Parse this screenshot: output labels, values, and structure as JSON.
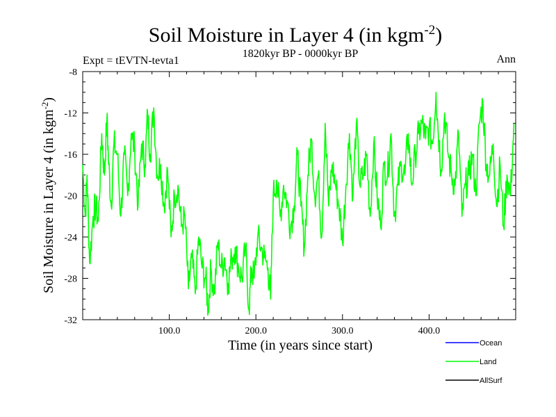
{
  "chart_data": {
    "type": "line",
    "title": "Soil Moisture in Layer 4 (in kgm",
    "title_sup": "-2",
    "title_close": ")",
    "subtitle": "1820kyr BP - 0000kyr BP",
    "expt_label": "Expt = tEVTN-tevta1",
    "season_label": "Ann",
    "xlabel": "Time (in years since start)",
    "ylabel": "Soil Moisture in Layer 4 (in kgm",
    "ylabel_sup": "-2",
    "ylabel_close": ")",
    "xlim": [
      0,
      500
    ],
    "ylim": [
      -32,
      -8
    ],
    "x_ticks": [
      100,
      200,
      300,
      400
    ],
    "x_tick_labels": [
      "100.0",
      "200.0",
      "300.0",
      "400.0"
    ],
    "y_ticks": [
      -8,
      -12,
      -16,
      -20,
      -24,
      -28,
      -32
    ],
    "y_tick_labels": [
      "-8",
      "-12",
      "-16",
      "-20",
      "-24",
      "-28",
      "-32"
    ],
    "legend_position": "bottom-right",
    "series": [
      {
        "name": "Ocean",
        "color": "#0000ff",
        "values": []
      },
      {
        "name": "Land",
        "color": "#00ff00",
        "x": [
          0,
          3,
          5,
          8,
          12,
          15,
          18,
          22,
          25,
          28,
          30,
          33,
          36,
          40,
          44,
          48,
          52,
          56,
          60,
          64,
          68,
          72,
          75,
          78,
          82,
          86,
          90,
          94,
          98,
          102,
          106,
          110,
          114,
          118,
          122,
          126,
          130,
          134,
          138,
          142,
          145,
          148,
          152,
          156,
          160,
          164,
          168,
          172,
          176,
          180,
          184,
          188,
          192,
          195,
          198,
          202,
          206,
          210,
          214,
          217,
          220,
          224,
          228,
          232,
          236,
          240,
          244,
          248,
          252,
          256,
          260,
          264,
          268,
          272,
          276,
          280,
          284,
          288,
          292,
          296,
          300,
          304,
          308,
          312,
          316,
          320,
          324,
          328,
          332,
          336,
          340,
          344,
          348,
          352,
          356,
          360,
          364,
          368,
          372,
          376,
          380,
          384,
          388,
          392,
          396,
          400,
          404,
          408,
          410,
          414,
          418,
          422,
          426,
          430,
          434,
          438,
          442,
          446,
          450,
          454,
          458,
          462,
          466,
          470,
          474,
          478,
          482,
          486,
          490,
          494,
          498
        ],
        "values": [
          -17,
          -22,
          -18,
          -26.5,
          -22,
          -21,
          -22.5,
          -14,
          -18,
          -12.5,
          -17,
          -21,
          -15,
          -16,
          -22,
          -16,
          -20,
          -14,
          -15.5,
          -21,
          -15,
          -17,
          -12,
          -16,
          -11.5,
          -18,
          -17,
          -21,
          -17.5,
          -24,
          -20,
          -19,
          -23,
          -22,
          -29,
          -26,
          -29.5,
          -24,
          -27,
          -28,
          -31,
          -27,
          -29.5,
          -24.5,
          -27,
          -26,
          -28.5,
          -26,
          -25,
          -27,
          -28,
          -25,
          -31,
          -27,
          -28,
          -24,
          -25,
          -26,
          -27,
          -30,
          -20,
          -18.5,
          -22,
          -19,
          -20.5,
          -23,
          -21,
          -16,
          -21,
          -25,
          -18,
          -14.5,
          -20,
          -18,
          -24,
          -13,
          -21,
          -17,
          -19,
          -21,
          -24.5,
          -19,
          -14,
          -20,
          -13,
          -19,
          -18,
          -16,
          -22,
          -15,
          -20,
          -23,
          -17,
          -18,
          -14,
          -22,
          -19,
          -17,
          -18,
          -14,
          -19,
          -16,
          -14,
          -13,
          -14.5,
          -13.5,
          -15,
          -10,
          -13,
          -17.5,
          -12,
          -16,
          -18,
          -19,
          -14,
          -22,
          -19,
          -18,
          -16,
          -20,
          -13,
          -11,
          -17,
          -18,
          -15,
          -21,
          -17,
          -23,
          -18,
          -20,
          -13
        ]
      },
      {
        "name": "AllSurf",
        "color": "#000000",
        "values": []
      }
    ]
  }
}
